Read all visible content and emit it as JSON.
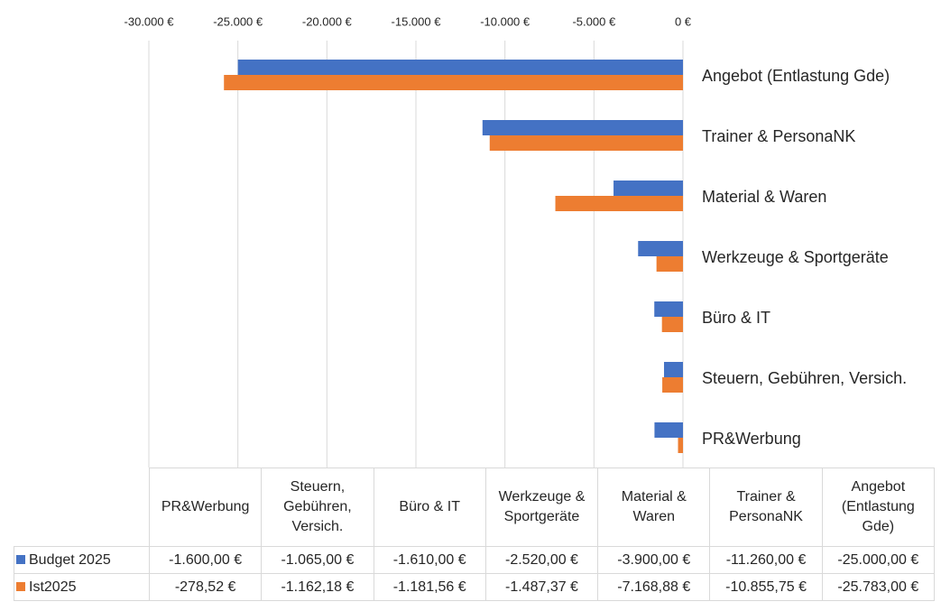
{
  "chart_data": {
    "type": "bar",
    "orientation": "horizontal",
    "categories": [
      "PR&Werbung",
      "Steuern, Gebühren, Versich.",
      "Büro & IT",
      "Werkzeuge & Sportgeräte",
      "Material & Waren",
      "Trainer & PersonaNK",
      "Angebot (Entlastung Gde)"
    ],
    "series": [
      {
        "name": "Budget 2025",
        "color": "#4472c4",
        "values": [
          -1600,
          -1065,
          -1610,
          -2520,
          -3900,
          -11260,
          -25000
        ],
        "value_labels": [
          "-1.600,00 €",
          "-1.065,00 €",
          "-1.610,00 €",
          "-2.520,00 €",
          "-3.900,00 €",
          "-11.260,00 €",
          "-25.000,00 €"
        ]
      },
      {
        "name": "Ist2025",
        "color": "#ed7d31",
        "values": [
          -278.52,
          -1162.18,
          -1181.56,
          -1487.37,
          -7168.88,
          -10855.75,
          -25783
        ],
        "value_labels": [
          "-278,52 €",
          "-1.162,18 €",
          "-1.181,56 €",
          "-1.487,37 €",
          "-7.168,88 €",
          "-10.855,75 €",
          "-25.783,00 €"
        ]
      }
    ],
    "xlim": [
      -30000,
      0
    ],
    "xticks": [
      {
        "value": -30000,
        "label": "-30.000 €"
      },
      {
        "value": -25000,
        "label": "-25.000 €"
      },
      {
        "value": -20000,
        "label": "-20.000 €"
      },
      {
        "value": -15000,
        "label": "-15.000 €"
      },
      {
        "value": -10000,
        "label": "-10.000 €"
      },
      {
        "value": -5000,
        "label": "-5.000 €"
      },
      {
        "value": 0,
        "label": "0 €"
      }
    ],
    "grid": true,
    "data_table": true
  }
}
